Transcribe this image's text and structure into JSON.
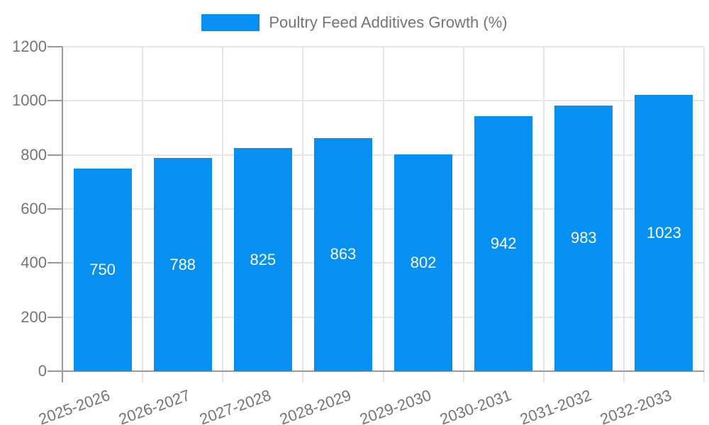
{
  "legend": {
    "label": "Poultry Feed Additives Growth (%)"
  },
  "chart_data": {
    "type": "bar",
    "title": "Poultry Feed Additives Growth (%)",
    "categories": [
      "2025-2026",
      "2026-2027",
      "2027-2028",
      "2028-2029",
      "2029-2030",
      "2030-2031",
      "2031-2032",
      "2032-2033"
    ],
    "values": [
      750,
      788,
      825,
      863,
      802,
      942,
      983,
      1023
    ],
    "value_labels": [
      "750",
      "788",
      "825",
      "863",
      "802",
      "942",
      "983",
      "1023"
    ],
    "xlabel": "",
    "ylabel": "",
    "ylim": [
      0,
      1200
    ],
    "ytick_step": 200,
    "yticks": [
      "0",
      "200",
      "400",
      "600",
      "800",
      "1000",
      "1200"
    ],
    "grid": true,
    "legend_position": "top",
    "x_label_rotation_deg": -20
  },
  "colors": {
    "bar": "#0590F2",
    "grid": "#E6E6E6",
    "axis": "#999999",
    "tick_text": "#757575",
    "bar_value_text": "#FFFFFF",
    "background": "#FFFFFF"
  }
}
